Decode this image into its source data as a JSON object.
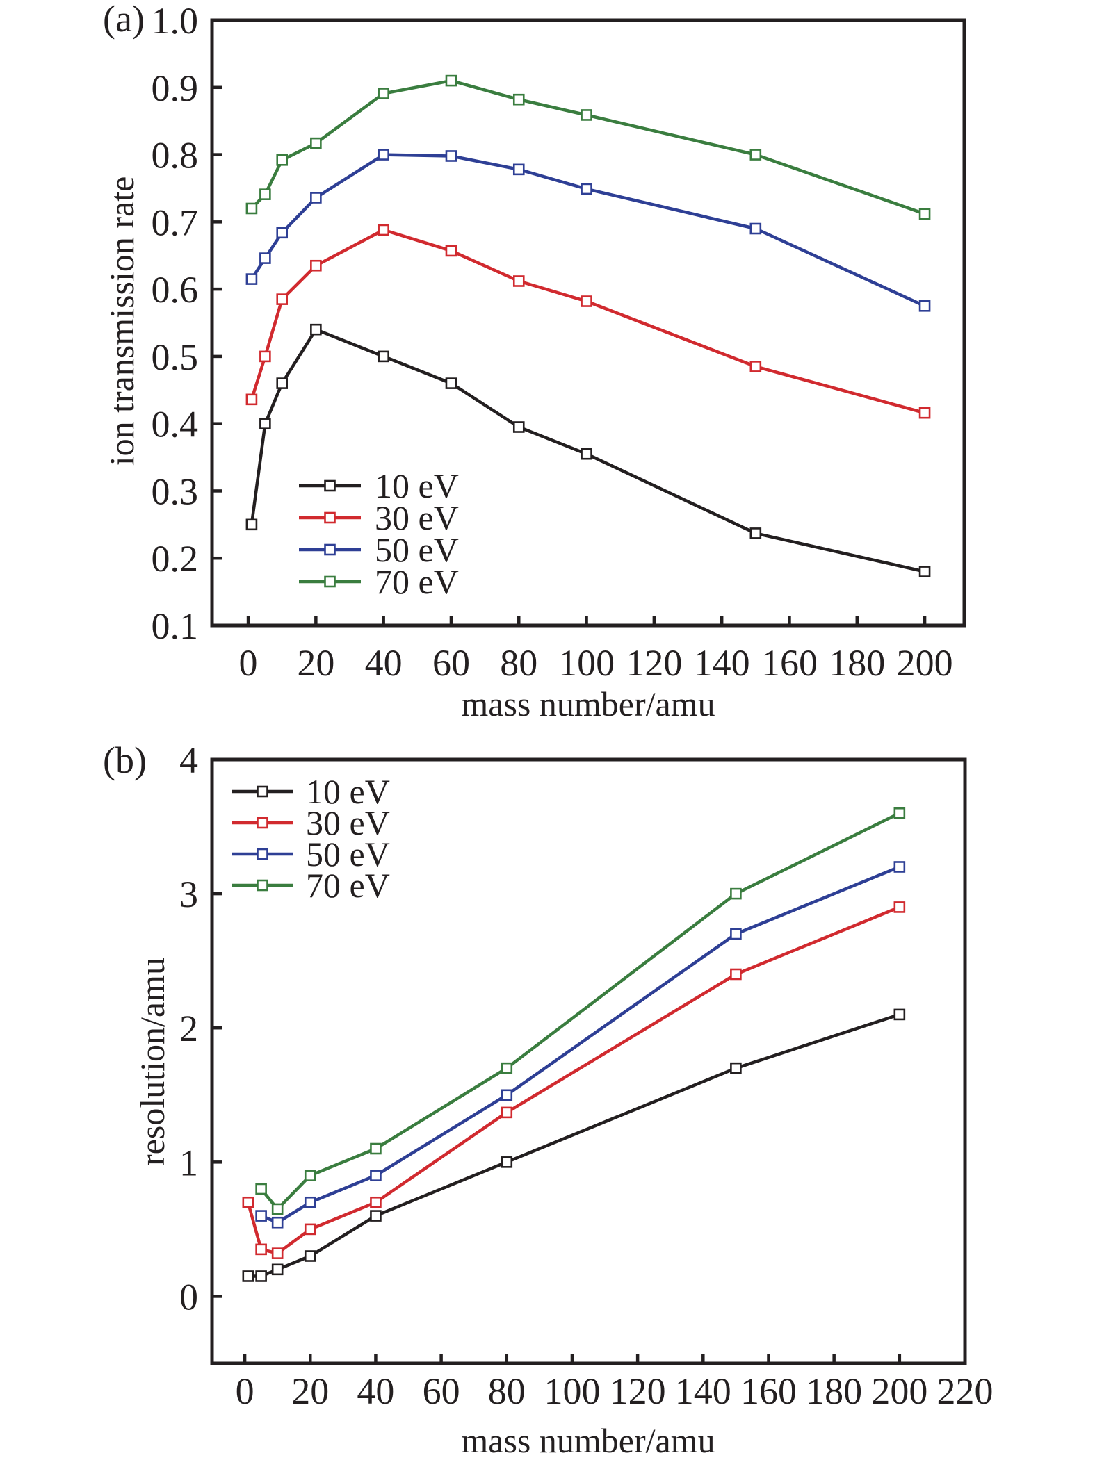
{
  "chart_data": [
    {
      "type": "line",
      "panel": "(a)",
      "title": "",
      "xlabel": "mass number/amu",
      "ylabel": "ion transmission rate",
      "xlim": [
        -10.7,
        211.7
      ],
      "ylim": [
        0.1,
        1.0
      ],
      "xticks": [
        0,
        20,
        40,
        60,
        80,
        100,
        120,
        140,
        160,
        180,
        200
      ],
      "yticks": [
        0.1,
        0.2,
        0.3,
        0.4,
        0.5,
        0.6,
        0.7,
        0.8,
        0.9,
        1.0
      ],
      "ytick_labels": [
        "0.1",
        "0.2",
        "0.3",
        "0.4",
        "0.5",
        "0.6",
        "0.7",
        "0.8",
        "0.9",
        "1.0"
      ],
      "grid": false,
      "legend_position": "lower-left",
      "x": [
        1,
        5,
        10,
        20,
        40,
        60,
        80,
        100,
        150,
        200
      ],
      "series": [
        {
          "name": "10 eV",
          "color": "#231f20",
          "values": [
            0.25,
            0.4,
            0.46,
            0.54,
            0.5,
            0.46,
            0.395,
            0.355,
            0.237,
            0.18
          ]
        },
        {
          "name": "30 eV",
          "color": "#d12a2f",
          "values": [
            0.436,
            0.5,
            0.585,
            0.635,
            0.688,
            0.657,
            0.612,
            0.582,
            0.485,
            0.416
          ]
        },
        {
          "name": "50 eV",
          "color": "#2e3f95",
          "values": [
            0.615,
            0.646,
            0.684,
            0.736,
            0.8,
            0.798,
            0.778,
            0.749,
            0.69,
            0.575
          ]
        },
        {
          "name": "70 eV",
          "color": "#3a7d3f",
          "values": [
            0.72,
            0.741,
            0.792,
            0.817,
            0.891,
            0.91,
            0.882,
            0.859,
            0.8,
            0.712
          ]
        }
      ]
    },
    {
      "type": "line",
      "panel": "(b)",
      "title": "",
      "xlabel": "mass number/amu",
      "ylabel": "resolution/amu",
      "xlim": [
        -10,
        220
      ],
      "ylim": [
        -0.5,
        4
      ],
      "xticks": [
        0,
        20,
        40,
        60,
        80,
        100,
        120,
        140,
        160,
        180,
        200,
        220
      ],
      "yticks": [
        0,
        1,
        2,
        3,
        4
      ],
      "ytick_labels": [
        "0",
        "1",
        "2",
        "3",
        "4"
      ],
      "grid": false,
      "legend_position": "top-left",
      "x": [
        1,
        5,
        10,
        20,
        40,
        80,
        150,
        200
      ],
      "series": [
        {
          "name": "10 eV",
          "color": "#231f20",
          "x": [
            1,
            5,
            10,
            20,
            40,
            80,
            150,
            200
          ],
          "values": [
            0.15,
            0.15,
            0.2,
            0.3,
            0.6,
            1.0,
            1.7,
            2.1
          ]
        },
        {
          "name": "30 eV",
          "color": "#d12a2f",
          "x": [
            1,
            5,
            10,
            20,
            40,
            80,
            150,
            200
          ],
          "values": [
            0.7,
            0.35,
            0.32,
            0.5,
            0.7,
            1.37,
            2.4,
            2.9
          ]
        },
        {
          "name": "50 eV",
          "color": "#2e3f95",
          "x": [
            5,
            10,
            20,
            40,
            80,
            150,
            200
          ],
          "values": [
            0.6,
            0.55,
            0.7,
            0.9,
            1.5,
            2.7,
            3.2
          ]
        },
        {
          "name": "70 eV",
          "color": "#3a7d3f",
          "x": [
            5,
            10,
            20,
            40,
            80,
            150,
            200
          ],
          "values": [
            0.8,
            0.65,
            0.9,
            1.1,
            1.7,
            3.0,
            3.6
          ]
        }
      ]
    }
  ]
}
